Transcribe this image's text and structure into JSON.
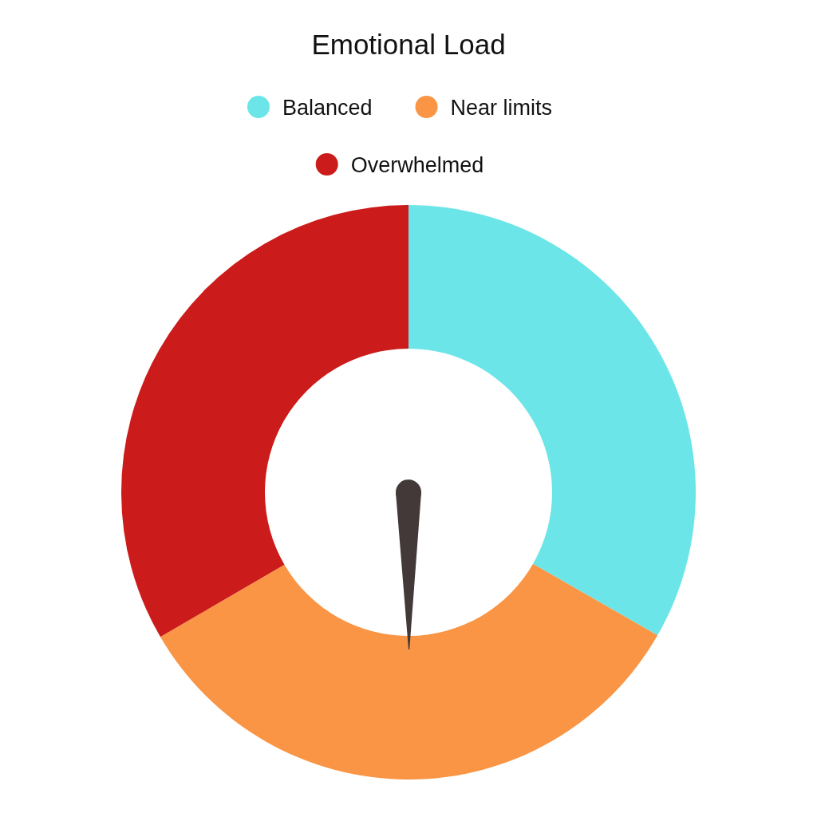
{
  "chart_data": {
    "type": "donut",
    "title": "Emotional Load",
    "categories": [
      "Balanced",
      "Near limits",
      "Overwhelmed"
    ],
    "values": [
      33.3,
      33.3,
      33.4
    ],
    "colors": [
      "#6ce5e8",
      "#f99544",
      "#cc1b1b"
    ],
    "legend": "top",
    "needle": "Near limits"
  }
}
